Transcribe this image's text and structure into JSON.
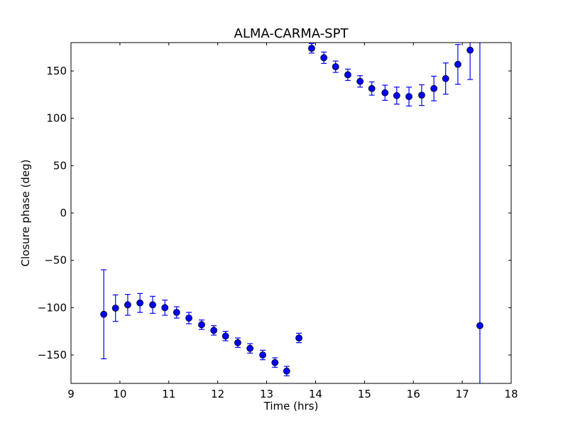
{
  "chart_data": {
    "type": "scatter",
    "title": "ALMA-CARMA-SPT",
    "xlabel": "Time (hrs)",
    "ylabel": "Closure phase (deg)",
    "xlim": [
      9,
      18
    ],
    "ylim": [
      -180,
      180
    ],
    "xticks": [
      9,
      10,
      11,
      12,
      13,
      14,
      15,
      16,
      17,
      18
    ],
    "yticks": [
      -150,
      -100,
      -50,
      0,
      50,
      100,
      150
    ],
    "ytick_labels": [
      "−150",
      "−100",
      "−50",
      "0",
      "50",
      "100",
      "150"
    ],
    "grid": false,
    "marker_color": "#0000ff",
    "series": [
      {
        "name": "closure phase",
        "x": [
          9.67,
          9.91,
          10.16,
          10.41,
          10.67,
          10.92,
          11.16,
          11.41,
          11.67,
          11.92,
          12.16,
          12.41,
          12.66,
          12.92,
          13.17,
          13.41,
          13.66,
          13.92,
          14.17,
          14.41,
          14.66,
          14.91,
          15.15,
          15.42,
          15.66,
          15.91,
          16.17,
          16.42,
          16.66,
          16.91,
          17.16,
          17.36
        ],
        "y": [
          -107,
          -100.5,
          -97,
          -95,
          -97,
          -100,
          -105,
          -111,
          -118,
          -124,
          -130,
          -137,
          -143,
          -150,
          -158,
          -167,
          -132,
          174,
          164,
          154.5,
          146,
          139,
          131.5,
          127,
          124,
          123,
          124.5,
          131.5,
          142,
          157,
          172,
          -119
        ],
        "yerr": [
          47,
          14,
          11,
          10,
          9,
          8,
          6,
          6,
          5,
          5,
          5,
          5,
          5,
          5,
          5,
          5,
          5,
          5,
          6,
          6,
          6,
          6,
          7,
          8,
          9,
          10,
          11,
          13,
          16.5,
          21,
          31,
          400
        ]
      }
    ]
  }
}
